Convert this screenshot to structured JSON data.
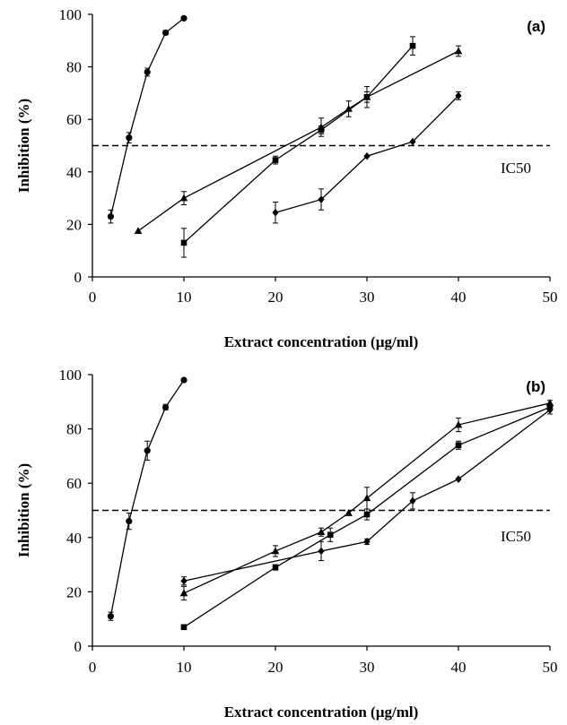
{
  "chart_data": [
    {
      "type": "scatter",
      "panel_label": "(a)",
      "xlabel": "Extract concentration (µg/ml)",
      "ylabel": "Inhibition (%)",
      "xlim": [
        0,
        50
      ],
      "ylim": [
        0,
        100
      ],
      "xticks": [
        0,
        10,
        20,
        30,
        40,
        50
      ],
      "yticks": [
        0,
        20,
        40,
        60,
        80,
        100
      ],
      "grid": false,
      "reference_line": {
        "y": 50,
        "label": "IC50",
        "style": "dashed"
      },
      "series": [
        {
          "marker": "circle",
          "points": [
            {
              "x": 2,
              "y": 23,
              "err": 2.5
            },
            {
              "x": 4,
              "y": 53,
              "err": 2
            },
            {
              "x": 6,
              "y": 78,
              "err": 1.5
            },
            {
              "x": 8,
              "y": 93,
              "err": 0.8
            },
            {
              "x": 10,
              "y": 98.5,
              "err": 0.5
            }
          ]
        },
        {
          "marker": "square",
          "points": [
            {
              "x": 10,
              "y": 13,
              "err": 5.5
            },
            {
              "x": 20,
              "y": 44.5,
              "err": 1.5
            },
            {
              "x": 25,
              "y": 56,
              "err": 1.5
            },
            {
              "x": 30,
              "y": 68.5,
              "err": 2
            },
            {
              "x": 35,
              "y": 88,
              "err": 3.5
            }
          ]
        },
        {
          "marker": "triangle",
          "points": [
            {
              "x": 5,
              "y": 17.5,
              "err": 0
            },
            {
              "x": 10,
              "y": 30,
              "err": 2.5
            },
            {
              "x": 25,
              "y": 57,
              "err": 3.5
            },
            {
              "x": 28,
              "y": 64,
              "err": 3
            },
            {
              "x": 30,
              "y": 68.5,
              "err": 4
            },
            {
              "x": 40,
              "y": 86,
              "err": 2
            }
          ]
        },
        {
          "marker": "diamond",
          "points": [
            {
              "x": 20,
              "y": 24.5,
              "err": 4
            },
            {
              "x": 25,
              "y": 29.5,
              "err": 4
            },
            {
              "x": 30,
              "y": 46,
              "err": 0
            },
            {
              "x": 35,
              "y": 51.5,
              "err": 0
            },
            {
              "x": 40,
              "y": 69,
              "err": 1.5
            }
          ]
        }
      ]
    },
    {
      "type": "scatter",
      "panel_label": "(b)",
      "xlabel": "Extract concentration (µg/ml)",
      "ylabel": "Inhibition (%)",
      "xlim": [
        0,
        50
      ],
      "ylim": [
        0,
        100
      ],
      "xticks": [
        0,
        10,
        20,
        30,
        40,
        50
      ],
      "yticks": [
        0,
        20,
        40,
        60,
        80,
        100
      ],
      "grid": false,
      "reference_line": {
        "y": 50,
        "label": "IC50",
        "style": "dashed"
      },
      "series": [
        {
          "marker": "circle",
          "points": [
            {
              "x": 2,
              "y": 11,
              "err": 1.5
            },
            {
              "x": 4,
              "y": 46,
              "err": 3
            },
            {
              "x": 6,
              "y": 72,
              "err": 3.5
            },
            {
              "x": 8,
              "y": 88,
              "err": 1
            },
            {
              "x": 10,
              "y": 98,
              "err": 0.5
            }
          ]
        },
        {
          "marker": "square",
          "points": [
            {
              "x": 10,
              "y": 7,
              "err": 0
            },
            {
              "x": 20,
              "y": 29,
              "err": 1
            },
            {
              "x": 26,
              "y": 41,
              "err": 2.5
            },
            {
              "x": 30,
              "y": 48.5,
              "err": 2
            },
            {
              "x": 40,
              "y": 74,
              "err": 1.5
            },
            {
              "x": 50,
              "y": 88,
              "err": 1
            }
          ]
        },
        {
          "marker": "triangle",
          "points": [
            {
              "x": 10,
              "y": 19.5,
              "err": 2.5
            },
            {
              "x": 20,
              "y": 35,
              "err": 2
            },
            {
              "x": 25,
              "y": 42,
              "err": 1.5
            },
            {
              "x": 28,
              "y": 49,
              "err": 0
            },
            {
              "x": 30,
              "y": 54.5,
              "err": 4
            },
            {
              "x": 40,
              "y": 81.5,
              "err": 2.5
            },
            {
              "x": 50,
              "y": 89.5,
              "err": 1
            }
          ]
        },
        {
          "marker": "diamond",
          "points": [
            {
              "x": 10,
              "y": 24,
              "err": 1.5
            },
            {
              "x": 25,
              "y": 35,
              "err": 3.5
            },
            {
              "x": 30,
              "y": 38.5,
              "err": 1
            },
            {
              "x": 35,
              "y": 53.5,
              "err": 3
            },
            {
              "x": 40,
              "y": 61.5,
              "err": 0
            },
            {
              "x": 50,
              "y": 87,
              "err": 1.5
            }
          ]
        }
      ]
    }
  ]
}
